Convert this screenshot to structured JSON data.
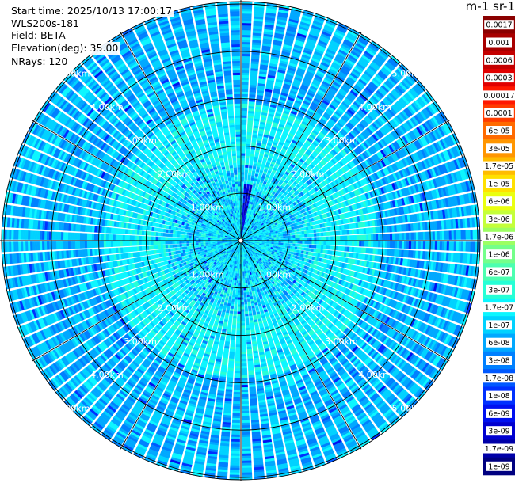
{
  "info": {
    "start_time": "Start time: 2025/10/13 17:00:17",
    "instrument": "WLS200s-181",
    "field": "Field: BETA",
    "elevation": "Elevation(deg): 35.00",
    "nrays": "NRays: 120"
  },
  "colorbar": {
    "title": "m-1 sr-1",
    "labels": [
      "0.0017",
      "0.001",
      "0.0006",
      "0.0003",
      "0.00017",
      "0.0001",
      "6e-05",
      "3e-05",
      "1.7e-05",
      "1e-05",
      "6e-06",
      "3e-06",
      "1.7e-06",
      "1e-06",
      "6e-07",
      "3e-07",
      "1.7e-07",
      "1e-07",
      "6e-08",
      "3e-08",
      "1.7e-08",
      "1e-08",
      "6e-09",
      "3e-09",
      "1.7e-09",
      "1e-09"
    ],
    "colors": [
      "#8a0000",
      "#a80000",
      "#c40000",
      "#e00000",
      "#ff1800",
      "#ff3c00",
      "#ff6a00",
      "#ff9600",
      "#ffbc00",
      "#ffe000",
      "#eaff10",
      "#c4ff3a",
      "#9cff62",
      "#74ff8a",
      "#4cffb0",
      "#26ffd6",
      "#0cf6ff",
      "#00d2ff",
      "#00a8ff",
      "#0080ff",
      "#0058ff",
      "#0030ff",
      "#0010f0",
      "#0000d0",
      "#0000a8",
      "#000080"
    ]
  },
  "chart_data": {
    "type": "heatmap",
    "projection": "polar-ppi",
    "field": "BETA",
    "units": "m-1 sr-1",
    "elevation_deg": 35.0,
    "n_rays": 120,
    "range_rings_km": [
      1,
      2,
      3,
      4,
      5
    ],
    "ring_labels": [
      "1.00km",
      "2.00km",
      "3.00km",
      "4.00km",
      "5.00km"
    ],
    "max_range_km": 5.05,
    "azimuth_grid_deg": [
      0,
      30,
      60,
      90,
      120,
      150,
      180,
      210,
      240,
      270,
      300,
      330
    ],
    "label_azimuths_deg": [
      45,
      135,
      225,
      315
    ],
    "dominant_value_range": [
      3e-08,
      1.7e-07
    ],
    "inner_zone_value_range": [
      1e-07,
      3e-07
    ],
    "weak_returns_azimuth_deg": [
      3,
      12
    ],
    "weak_returns_value_range": [
      1e-09,
      1e-08
    ]
  }
}
